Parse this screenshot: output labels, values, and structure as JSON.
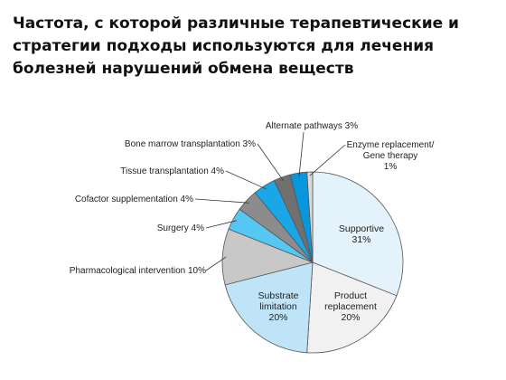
{
  "title_lines": [
    "Частота, с которой различные терапевтические и",
    "стратегии подходы используются для лечения",
    "болезней нарушений обмена веществ"
  ],
  "chart_data": {
    "type": "pie",
    "title": "Частота, с которой различные терапевтические и стратегии подходы используются для лечения болезней нарушений обмена веществ",
    "start": "12 o'clock",
    "direction": "clockwise",
    "slices": [
      {
        "name": "Supportive",
        "value": 31,
        "label_lines": [
          "Supportive",
          "31%"
        ],
        "label_inside": true,
        "color": "#e3f2fb"
      },
      {
        "name": "Product replacement",
        "value": 20,
        "label_lines": [
          "Product",
          "replacement",
          "20%"
        ],
        "label_inside": true,
        "color": "#f1f1f1"
      },
      {
        "name": "Substrate limitation",
        "value": 20,
        "label_lines": [
          "Substrate",
          "limitation",
          "20%"
        ],
        "label_inside": true,
        "color": "#bfe4f7"
      },
      {
        "name": "Pharmacological intervention",
        "value": 10,
        "label_lines": [
          "Pharmacological intervention 10%"
        ],
        "label_inside": false,
        "color": "#c8c8c8"
      },
      {
        "name": "Surgery",
        "value": 4,
        "label_lines": [
          "Surgery 4%"
        ],
        "label_inside": false,
        "color": "#56c6f2"
      },
      {
        "name": "Cofactor supplementation",
        "value": 4,
        "label_lines": [
          "Cofactor supplementation 4%"
        ],
        "label_inside": false,
        "color": "#8c8c8c"
      },
      {
        "name": "Tissue transplantation",
        "value": 4,
        "label_lines": [
          "Tissue transplantation 4%"
        ],
        "label_inside": false,
        "color": "#1aa7e8"
      },
      {
        "name": "Bone marrow transplantation",
        "value": 3,
        "label_lines": [
          "Bone marrow transplantation 3%"
        ],
        "label_inside": false,
        "color": "#707070"
      },
      {
        "name": "Alternate pathways",
        "value": 3,
        "label_lines": [
          "Alternate pathways 3%"
        ],
        "label_inside": false,
        "color": "#0a96dc"
      },
      {
        "name": "Enzyme replacement/ Gene therapy",
        "value": 1,
        "label_lines": [
          "Enzyme replacement/",
          "Gene therapy",
          "1%"
        ],
        "label_inside": false,
        "color": "#d8d8d8"
      }
    ]
  }
}
